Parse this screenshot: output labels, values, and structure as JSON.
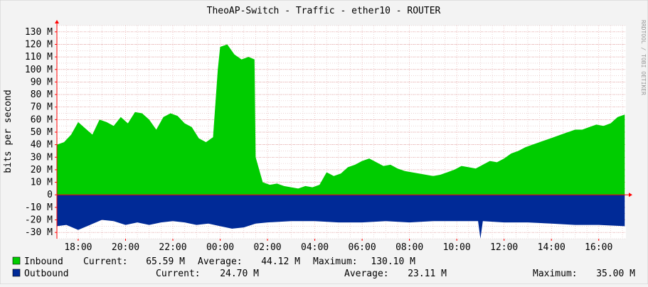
{
  "chart_data": {
    "type": "area",
    "title": "TheoAP-Switch - Traffic - ether10 - ROUTER",
    "ylabel": "bits per second",
    "watermark": "RRDTOOL / TOBI OETIKER",
    "ylim": [
      -35000000,
      135000000
    ],
    "ytick_values": [
      130000000,
      120000000,
      110000000,
      100000000,
      90000000,
      80000000,
      70000000,
      60000000,
      50000000,
      40000000,
      30000000,
      20000000,
      10000000,
      0,
      -10000000,
      -20000000,
      -30000000
    ],
    "ytick_labels": [
      "130 M",
      "120 M",
      "110 M",
      "100 M",
      "90 M",
      "80 M",
      "70 M",
      "60 M",
      "50 M",
      "40 M",
      "30 M",
      "20 M",
      "10 M",
      "0",
      "-10 M",
      "-20 M",
      "-30 M"
    ],
    "x_start_hour": 17.1,
    "x_end_hour": 41.15,
    "xtick_hours": [
      18,
      20,
      22,
      24,
      26,
      28,
      30,
      32,
      34,
      36,
      38,
      40
    ],
    "xtick_labels": [
      "18:00",
      "20:00",
      "22:00",
      "00:00",
      "02:00",
      "04:00",
      "06:00",
      "08:00",
      "10:00",
      "12:00",
      "14:00",
      "16:00"
    ],
    "grid": true,
    "colors": {
      "inbound": "#00cc00",
      "outbound": "#002a97",
      "axis": "#ff0000",
      "grid": "#e0b8b8",
      "background": "#f3f3f3",
      "plot": "#ffffff"
    },
    "series": [
      {
        "name": "Inbound",
        "color": "#00cc00",
        "unit": "M",
        "x": [
          17.1,
          17.4,
          17.7,
          18.0,
          18.3,
          18.6,
          18.9,
          19.2,
          19.5,
          19.8,
          20.1,
          20.4,
          20.7,
          21.0,
          21.3,
          21.6,
          21.9,
          22.2,
          22.5,
          22.8,
          23.1,
          23.4,
          23.7,
          23.9,
          24.0,
          24.3,
          24.6,
          24.9,
          25.2,
          25.45,
          25.5,
          25.8,
          26.1,
          26.4,
          26.7,
          27.0,
          27.3,
          27.6,
          27.9,
          28.2,
          28.5,
          28.8,
          29.1,
          29.4,
          29.7,
          30.0,
          30.3,
          30.6,
          30.9,
          31.2,
          31.5,
          31.8,
          32.1,
          32.4,
          32.7,
          33.0,
          33.3,
          33.6,
          33.9,
          34.2,
          34.5,
          34.8,
          35.1,
          35.4,
          35.7,
          36.0,
          36.3,
          36.6,
          36.9,
          37.2,
          37.5,
          37.8,
          38.1,
          38.4,
          38.7,
          39.0,
          39.3,
          39.6,
          39.9,
          40.2,
          40.5,
          40.8,
          41.1
        ],
        "values": [
          40,
          42,
          48,
          58,
          53,
          48,
          60,
          58,
          55,
          62,
          57,
          66,
          65,
          60,
          52,
          62,
          65,
          63,
          57,
          54,
          45,
          42,
          46,
          100,
          118,
          120,
          112,
          108,
          110,
          108,
          30,
          10,
          8,
          9,
          7,
          6,
          5,
          7,
          6,
          8,
          18,
          15,
          17,
          22,
          24,
          27,
          29,
          26,
          23,
          24,
          21,
          19,
          18,
          17,
          16,
          15,
          16,
          18,
          20,
          23,
          22,
          21,
          24,
          27,
          26,
          29,
          33,
          35,
          38,
          40,
          42,
          44,
          46,
          48,
          50,
          52,
          52,
          54,
          56,
          55,
          57,
          62,
          64
        ]
      },
      {
        "name": "Outbound",
        "color": "#002a97",
        "unit": "M",
        "x": [
          17.1,
          17.5,
          18.0,
          18.5,
          19.0,
          19.5,
          20.0,
          20.5,
          21.0,
          21.5,
          22.0,
          22.5,
          23.0,
          23.5,
          24.0,
          24.5,
          25.0,
          25.5,
          26.0,
          27.0,
          28.0,
          29.0,
          30.0,
          31.0,
          32.0,
          33.0,
          34.0,
          34.9,
          35.0,
          35.1,
          36.0,
          37.0,
          38.0,
          39.0,
          40.0,
          41.1
        ],
        "values": [
          -25,
          -24,
          -28,
          -24,
          -20,
          -21,
          -24,
          -22,
          -24,
          -22,
          -21,
          -22,
          -24,
          -23,
          -25,
          -27,
          -26,
          -23,
          -22,
          -21,
          -21,
          -22,
          -22,
          -21,
          -22,
          -21,
          -21,
          -21,
          -35,
          -21,
          -22,
          -22,
          -23,
          -24,
          -24,
          -25
        ]
      }
    ],
    "legend": [
      {
        "label": "Inbound",
        "current_label": "Current:",
        "current": "65.59 M",
        "average_label": "Average:",
        "average": "44.12 M",
        "maximum_label": "Maximum:",
        "maximum": "130.10 M"
      },
      {
        "label": "Outbound",
        "current_label": "Current:",
        "current": "24.70 M",
        "average_label": "Average:",
        "average": "23.11 M",
        "maximum_label": "Maximum:",
        "maximum": "35.00 M"
      }
    ]
  }
}
